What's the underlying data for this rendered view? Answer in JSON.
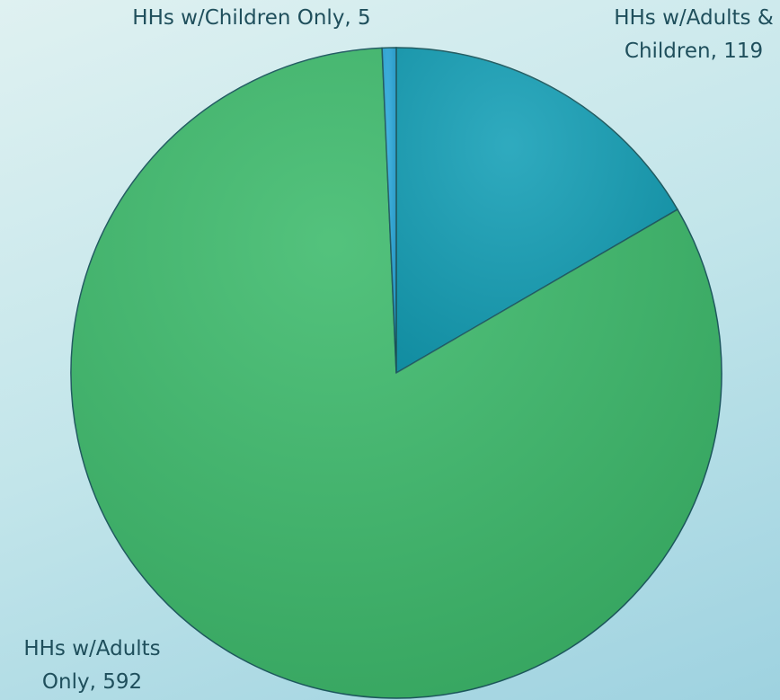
{
  "chart_data": {
    "type": "pie",
    "categories": [
      "HHs w/Adults & Children",
      "HHs w/Adults Only",
      "HHs w/Children Only"
    ],
    "values": [
      119,
      592,
      5
    ],
    "value_labels": [
      "HHs w/Adults & Children, 119",
      "HHs w/Adults Only, 592",
      "HHs w/Children Only, 5"
    ],
    "colors": [
      "#139fb6",
      "#3cba6b",
      "#2aa9dc"
    ]
  }
}
